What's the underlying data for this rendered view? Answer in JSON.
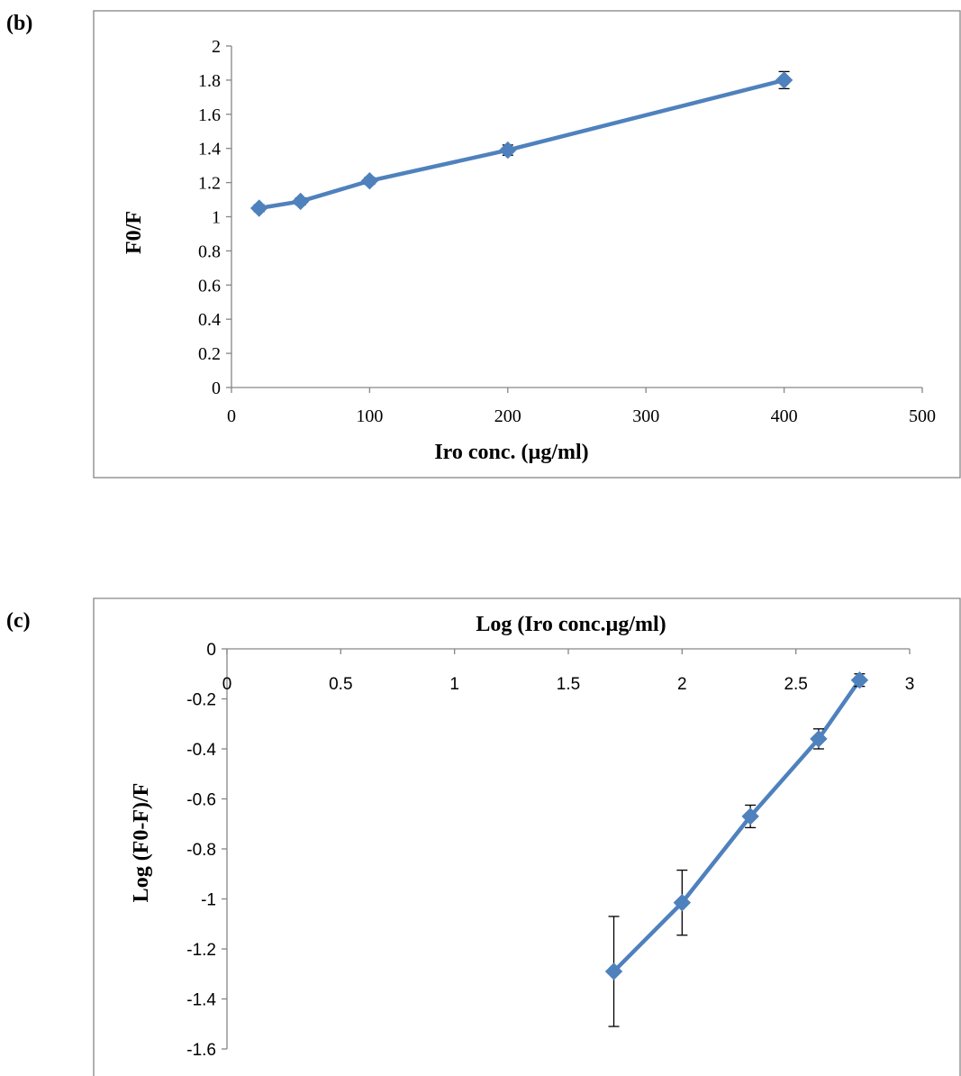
{
  "panels": [
    {
      "label": "(b)"
    },
    {
      "label": "(c)"
    }
  ],
  "colors": {
    "series": "#4f81bd",
    "axis": "#868686",
    "error": "#000000",
    "text": "#000000"
  },
  "chart_data": [
    {
      "type": "line",
      "xlabel": "Iro conc. (µg/ml)",
      "ylabel": "F0/F",
      "xlim": [
        0,
        500
      ],
      "ylim": [
        0,
        2
      ],
      "xticks": [
        0,
        100,
        200,
        300,
        400,
        500
      ],
      "yticks": [
        0,
        0.2,
        0.4,
        0.6,
        0.8,
        1,
        1.2,
        1.4,
        1.6,
        1.8,
        2
      ],
      "x": [
        20,
        50,
        100,
        200,
        400
      ],
      "y": [
        1.05,
        1.09,
        1.21,
        1.39,
        1.8
      ],
      "error": [
        0.02,
        0.02,
        0.02,
        0.03,
        0.05
      ],
      "marker": "diamond",
      "grid": false,
      "legend": "none"
    },
    {
      "type": "line",
      "title": "Log (Iro conc.µg/ml)",
      "ylabel": "Log (F0-F)/F",
      "xlim": [
        0,
        3
      ],
      "ylim": [
        -1.6,
        0
      ],
      "xticks": [
        0,
        0.5,
        1,
        1.5,
        2,
        2.5,
        3
      ],
      "yticks": [
        0,
        -0.2,
        -0.4,
        -0.6,
        -0.8,
        -1,
        -1.2,
        -1.4,
        -1.6
      ],
      "x": [
        1.7,
        2.0,
        2.3,
        2.6,
        2.78
      ],
      "y": [
        -1.29,
        -1.015,
        -0.67,
        -0.36,
        -0.125
      ],
      "error": [
        0.22,
        0.13,
        0.045,
        0.04,
        0.025
      ],
      "marker": "diamond",
      "grid": false,
      "legend": "none"
    }
  ]
}
